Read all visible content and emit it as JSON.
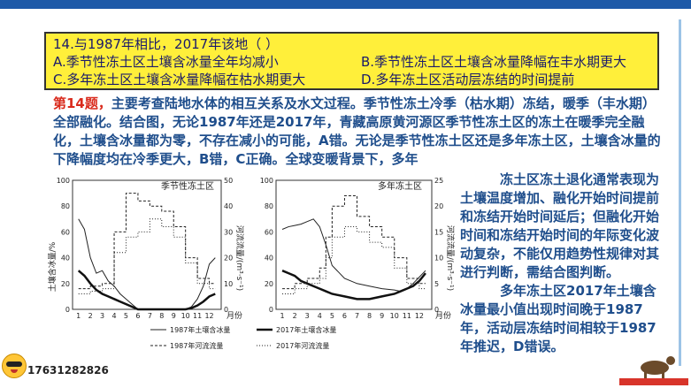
{
  "question": {
    "stem": "14.与1987年相比，2017年该地（      ）",
    "option_a": "A.季节性冻土区土壤含冰量全年均减小",
    "option_b": "B.季节性冻土区土壤含冰量降幅在丰水期更大",
    "option_c": "C.多年冻土区土壤含冰量降幅在枯水期更大",
    "option_d": "D.多年冻土区活动层冻结的时间提前"
  },
  "explanation": {
    "label": "第14题，",
    "text": "主要考查陆地水体的相互关系及水文过程。季节性冻土冷季（枯水期）冻结，暖季（丰水期）全部融化。结合图，无论1987年还是2017年，青藏高原黄河源区季节性冻土区的冻土在暖季完全融化，土壤含冰量都为零，不存在减小的可能，A错。无论是季节性冻土区还是多年冻土区，土壤含冰量的下降幅度均在冷季更大，B错，C正确。全球变暖背景下，多年"
  },
  "right_text": {
    "p1": "冻土区冻土退化通常表现为土壤温度增加、融化开始时间提前和冻结开始时间延后；但融化开始时间和冻结开始时间的年际变化波动复杂，不能仅用趋势性规律对其进行判断，需结合图判断。",
    "p2": "多年冻土区2017年土壤含冰量最小值出现时间晚于1987年，活动层冻结时间相较于1987年推迟，D错误。"
  },
  "chart_data": [
    {
      "type": "line",
      "title": "季节性冻土区",
      "ylabel_left": "土壤含冰量/%",
      "ylabel_right": "河流流量/(m³·s⁻¹)",
      "xlabel": "月份",
      "x_ticks": [
        "1",
        "2",
        "3",
        "4",
        "5",
        "6",
        "7",
        "8",
        "9",
        "10",
        "11",
        "12"
      ],
      "y_left_ticks": [
        "0",
        "20",
        "40",
        "60",
        "80",
        "100"
      ],
      "y_right_ticks": [
        "0",
        "10",
        "20",
        "30",
        "40",
        "50"
      ],
      "y_left_range": [
        0,
        100
      ],
      "y_right_range": [
        0,
        50
      ],
      "x": [
        1,
        1.5,
        2,
        2.5,
        3,
        3.5,
        4,
        4.5,
        5,
        6,
        7,
        8,
        9,
        10,
        10.5,
        11,
        11.5,
        12,
        12.5
      ],
      "series": [
        {
          "name": "1987年土壤含冰量",
          "axis": "left",
          "values": [
            70,
            62,
            40,
            28,
            30,
            22,
            18,
            12,
            8,
            0,
            0,
            0,
            0,
            0,
            2,
            8,
            18,
            35,
            40
          ]
        },
        {
          "name": "2017年土壤含冰量",
          "axis": "left",
          "values": [
            30,
            26,
            20,
            15,
            12,
            10,
            8,
            6,
            4,
            0,
            0,
            0,
            0,
            0,
            1,
            3,
            6,
            10,
            12
          ]
        },
        {
          "name": "1987年河流流量",
          "axis": "right",
          "step": true,
          "values": [
            8,
            8,
            9,
            9,
            10,
            10,
            30,
            30,
            45,
            42,
            40,
            38,
            32,
            20,
            20,
            12,
            12,
            10,
            10
          ]
        },
        {
          "name": "2017年河流流量",
          "axis": "right",
          "step": true,
          "values": [
            6,
            6,
            7,
            7,
            8,
            8,
            22,
            22,
            28,
            30,
            35,
            32,
            28,
            18,
            18,
            10,
            10,
            8,
            8
          ]
        }
      ]
    },
    {
      "type": "line",
      "title": "多年冻土区",
      "ylabel_right": "河流流量/(m³·s⁻¹)",
      "xlabel": "月份",
      "x_ticks": [
        "1",
        "2",
        "3",
        "4",
        "5",
        "6",
        "7",
        "8",
        "9",
        "10",
        "11",
        "12"
      ],
      "y_left_ticks": [
        "0",
        "20",
        "40",
        "60",
        "80",
        "100"
      ],
      "y_right_ticks": [
        "0",
        "5",
        "10",
        "15",
        "20",
        "25"
      ],
      "y_left_range": [
        0,
        100
      ],
      "y_right_range": [
        0,
        25
      ],
      "x": [
        1,
        1.5,
        2,
        2.5,
        3,
        3.5,
        4,
        4.5,
        5,
        6,
        7,
        8,
        9,
        10,
        10.5,
        11,
        11.5,
        12,
        12.5
      ],
      "series": [
        {
          "name": "1987年土壤含冰量",
          "axis": "left",
          "values": [
            62,
            64,
            65,
            66,
            68,
            70,
            64,
            50,
            34,
            24,
            20,
            18,
            16,
            15,
            14,
            16,
            20,
            25,
            30
          ]
        },
        {
          "name": "2017年土壤含冰量",
          "axis": "left",
          "values": [
            30,
            28,
            26,
            22,
            20,
            18,
            16,
            14,
            12,
            10,
            8,
            8,
            10,
            12,
            14,
            16,
            18,
            22,
            28
          ]
        },
        {
          "name": "1987年河流流量",
          "axis": "right",
          "step": true,
          "values": [
            4,
            4,
            5,
            5,
            6,
            6,
            8,
            14,
            20,
            22,
            18,
            16,
            14,
            10,
            10,
            6,
            6,
            5,
            5
          ]
        },
        {
          "name": "2017年河流流量",
          "axis": "right",
          "step": true,
          "values": [
            3,
            3,
            4,
            4,
            5,
            5,
            6,
            10,
            14,
            16,
            15,
            13,
            12,
            8,
            8,
            5,
            5,
            4,
            4
          ]
        }
      ]
    }
  ],
  "legend": {
    "item1": "1987年土壤含冰量",
    "item2": "2017年土壤含冰量",
    "item3": "1987年河流流量",
    "item4": "2017年河流流量"
  },
  "footer": {
    "phone": "17631282826"
  },
  "colors": {
    "question_bg": "#ffef3a",
    "text_blue": "#1f4e8c",
    "label_red": "#d92a1c",
    "top_bar": "#1e5aa8"
  }
}
